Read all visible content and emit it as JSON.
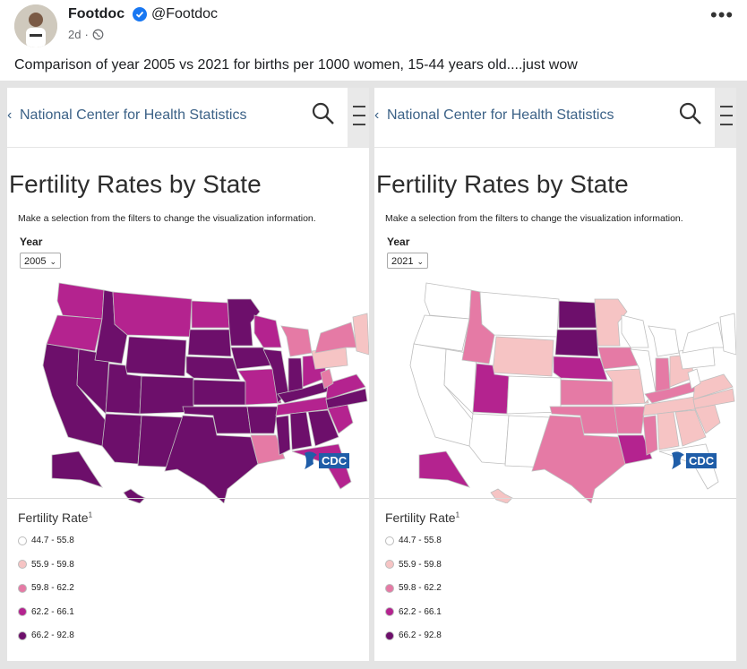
{
  "post": {
    "author": "Footdoc",
    "handle": "@Footdoc",
    "time": "2d",
    "text": "Comparison of year 2005 vs 2021 for births per 1000 women, 15-44 years old....just wow",
    "more_icon": "more-options-icon"
  },
  "panels": [
    {
      "nav_text": "National Center for Health Statistics",
      "title": "Fertility Rates by State",
      "subtitle": "Make a selection from the filters to change the visualization information.",
      "year_label": "Year",
      "year_value": "2005",
      "cdc": "CDC",
      "legend_title": "Fertility Rate",
      "legend_sup": "1"
    },
    {
      "nav_text": "National Center for Health Statistics",
      "title": "Fertility Rates by State",
      "subtitle": "Make a selection from the filters to change the visualization information.",
      "year_label": "Year",
      "year_value": "2021",
      "cdc": "CDC",
      "legend_title": "Fertility Rate",
      "legend_sup": "1"
    }
  ],
  "legend": [
    {
      "label": "44.7 - 55.8",
      "color": "#ffffff"
    },
    {
      "label": "55.9 - 59.8",
      "color": "#f6c4c4"
    },
    {
      "label": "59.8 - 62.2",
      "color": "#e57aa5"
    },
    {
      "label": "62.2 - 66.1",
      "color": "#b4238f"
    },
    {
      "label": "66.2 - 92.8",
      "color": "#6d0f6b"
    }
  ],
  "maps": [
    {
      "year": "2005",
      "states": {
        "WA": 3,
        "OR": 3,
        "ID": 4,
        "MT": 3,
        "WY": 4,
        "CA": 4,
        "NV": 4,
        "UT": 4,
        "CO": 4,
        "AZ": 4,
        "NM": 4,
        "ND": 3,
        "SD": 4,
        "NE": 4,
        "KS": 4,
        "OK": 4,
        "TX": 4,
        "MN": 4,
        "IA": 4,
        "MO": 3,
        "AR": 4,
        "LA": 2,
        "WI": 3,
        "IL": 4,
        "MI": 2,
        "IN": 4,
        "OH": 3,
        "KY": 4,
        "TN": 3,
        "MS": 4,
        "AL": 4,
        "GA": 4,
        "FL": 3,
        "SC": 3,
        "NC": 4,
        "VA": 3,
        "WV": 2,
        "PA": 1,
        "NY": 2,
        "NE_STATES": 1,
        "AK": 4,
        "HI": 4
      }
    },
    {
      "year": "2021",
      "states": {
        "WA": 0,
        "OR": 0,
        "ID": 2,
        "MT": 0,
        "WY": 1,
        "CA": 0,
        "NV": 0,
        "UT": 3,
        "CO": 0,
        "AZ": 0,
        "NM": 0,
        "ND": 4,
        "SD": 4,
        "NE": 3,
        "KS": 2,
        "OK": 2,
        "TX": 2,
        "MN": 1,
        "IA": 2,
        "MO": 1,
        "AR": 2,
        "LA": 3,
        "WI": 0,
        "IL": 0,
        "MI": 0,
        "IN": 2,
        "OH": 1,
        "KY": 2,
        "TN": 1,
        "MS": 2,
        "AL": 1,
        "GA": 1,
        "FL": 0,
        "SC": 1,
        "NC": 1,
        "VA": 1,
        "WV": 0,
        "PA": 0,
        "NY": 0,
        "NE_STATES": 0,
        "AK": 3,
        "HI": 1
      }
    }
  ]
}
